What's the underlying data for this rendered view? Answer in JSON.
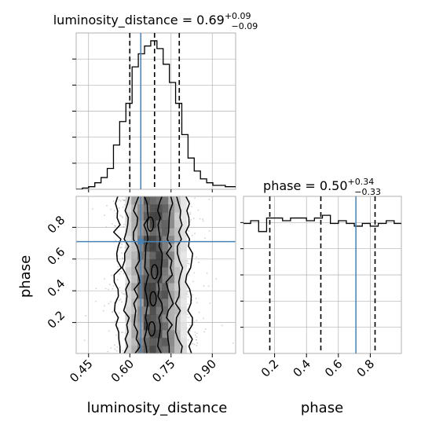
{
  "colors": {
    "truth": "#4682b4",
    "hist": "#000000",
    "grid": "#b0b0b0",
    "scatter": "#9a9a9a"
  },
  "chart_data": [
    {
      "type": "histogram",
      "title_main": "luminosity_distance = 0.69",
      "title_sup": "+0.09",
      "title_sub": "−0.09",
      "xlim": [
        0.405,
        0.985
      ],
      "bin_edges": [
        0.405,
        0.4276,
        0.4502,
        0.4728,
        0.4954,
        0.518,
        0.5406,
        0.5632,
        0.5858,
        0.6084,
        0.631,
        0.6536,
        0.6762,
        0.6988,
        0.7214,
        0.744,
        0.7666,
        0.7892,
        0.8118,
        0.8344,
        0.857,
        0.8796,
        0.9022,
        0.9248,
        0.9474,
        0.97,
        0.985
      ],
      "counts": [
        0.0,
        0.5,
        1.0,
        2.5,
        4.5,
        8,
        17,
        26,
        33,
        47,
        52,
        55,
        57,
        54,
        48,
        41,
        33,
        21,
        12,
        7,
        4,
        2.5,
        1.5,
        1.5,
        1.0,
        1.0
      ],
      "ymax": 60,
      "quantiles": [
        0.6,
        0.69,
        0.78
      ],
      "truth": 0.64
    },
    {
      "type": "histogram",
      "title_main": "phase = 0.50",
      "title_sup": "+0.34",
      "title_sub": "−0.33",
      "xlim": [
        0.005,
        0.995
      ],
      "bin_edges": [
        0.005,
        0.05,
        0.1,
        0.15,
        0.2,
        0.25,
        0.3,
        0.35,
        0.4,
        0.45,
        0.5,
        0.55,
        0.6,
        0.65,
        0.7,
        0.75,
        0.8,
        0.85,
        0.9,
        0.95,
        0.995
      ],
      "counts": [
        48,
        49,
        45,
        50,
        50,
        49,
        50,
        50,
        49,
        50,
        51,
        48,
        49,
        48,
        47,
        48,
        47,
        48,
        49,
        48
      ],
      "ymax": 58,
      "quantiles": [
        0.17,
        0.49,
        0.83
      ],
      "truth": 0.71
    },
    {
      "type": "2d-density",
      "x_label": "luminosity_distance",
      "y_label": "phase",
      "xlim": [
        0.405,
        0.985
      ],
      "ylim": [
        0.005,
        0.995
      ],
      "x_ticks": [
        "0.45",
        "0.60",
        "0.75",
        "0.90"
      ],
      "x_tick_values": [
        0.45,
        0.6,
        0.75,
        0.9
      ],
      "y_ticks": [
        "0.2",
        "0.4",
        "0.6",
        "0.8"
      ],
      "y_tick_values": [
        0.2,
        0.4,
        0.6,
        0.8
      ],
      "truth": [
        0.64,
        0.71
      ],
      "contour_x_bounds": [
        [
          0.66,
          0.71
        ],
        [
          0.625,
          0.745
        ],
        [
          0.585,
          0.78
        ],
        [
          0.555,
          0.815
        ]
      ],
      "density_sigma": 0.055
    },
    {
      "type": "axis",
      "x_label": "phase",
      "x_ticks": [
        "0.2",
        "0.4",
        "0.6",
        "0.8"
      ],
      "x_tick_values": [
        0.2,
        0.4,
        0.6,
        0.8
      ]
    }
  ]
}
